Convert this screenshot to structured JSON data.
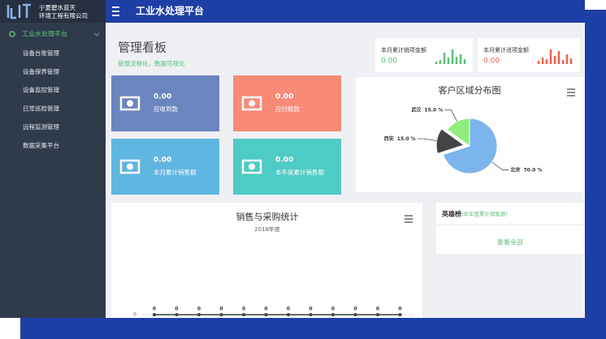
{
  "sidebar": {
    "company": [
      "宁夏碧水蓝天",
      "环境工程有限公司"
    ],
    "group": "工业水处理平台",
    "items": [
      "设备台账管理",
      "设备保养管理",
      "设备监控管理",
      "日常巡检管理",
      "远程监测管理",
      "数据采集平台"
    ]
  },
  "header": {
    "title": "工业水处理平台"
  },
  "dashboard": {
    "title": "管理看板",
    "subtitle": "管理流程化，数据可视化"
  },
  "stats": [
    {
      "label": "本月累计销项金额",
      "value": "0.00"
    },
    {
      "label": "本月累计进项金额",
      "value": "0.00"
    }
  ],
  "tiles": [
    {
      "value": "0.00",
      "label": "应收到款"
    },
    {
      "value": "0.00",
      "label": "应付账款"
    },
    {
      "value": "0.00",
      "label": "本月累计销售额"
    },
    {
      "value": "0.00",
      "label": "本年度累计销售额"
    }
  ],
  "ranking": {
    "title": "英雄榜",
    "subtitle": "(本年度累计销售额)",
    "link": "查看全部"
  },
  "chart_data": [
    {
      "type": "pie",
      "title": "客户区域分布图",
      "categories": [
        "北京",
        "西安",
        "武汉"
      ],
      "values": [
        70,
        15,
        15
      ],
      "value_labels": [
        "70.0 %",
        "15.0 %",
        "15.0 %"
      ],
      "colors": [
        "#7cb5ec",
        "#434348",
        "#90ed7d"
      ],
      "exploded": [
        false,
        true,
        false
      ]
    },
    {
      "type": "line",
      "title": "销售与采购统计",
      "subtitle": "2018年度",
      "ylim": [
        0,
        1
      ],
      "yticks": [
        0
      ],
      "series": [
        {
          "color": "#90ed7d",
          "values": [
            0,
            0,
            0,
            0,
            0,
            0,
            0,
            0,
            0,
            0,
            0,
            0
          ]
        },
        {
          "color": "#434348",
          "values": [
            0,
            0,
            0,
            0,
            0,
            0,
            0,
            0,
            0,
            0,
            0,
            0
          ]
        }
      ]
    }
  ]
}
